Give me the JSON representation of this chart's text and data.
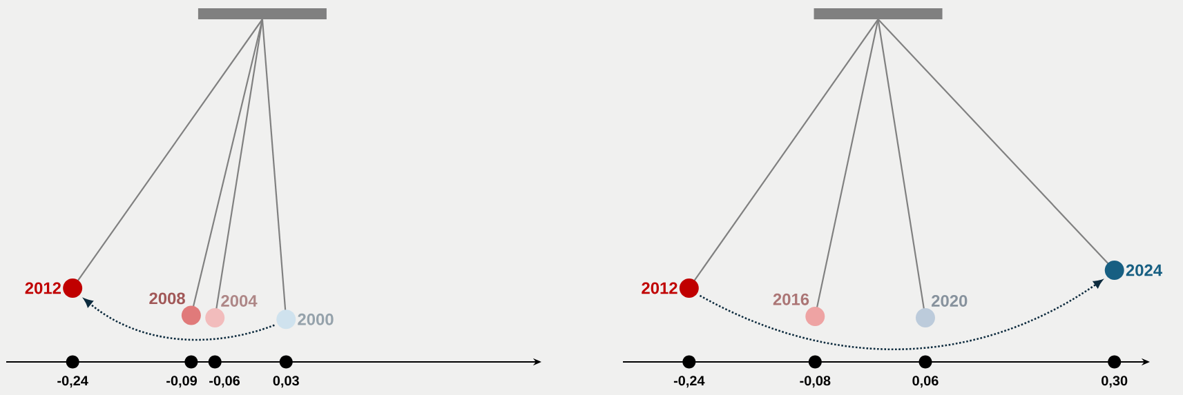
{
  "chart_data": [
    {
      "type": "other",
      "categories": [
        "2012",
        "2008",
        "2004",
        "2000"
      ],
      "values": [
        -0.24,
        -0.09,
        -0.06,
        0.03
      ],
      "value_labels": [
        "-0,24",
        "-0,09",
        "-0,06",
        "0,03"
      ],
      "colors": [
        "#c00000",
        "#e07a7a",
        "#f2bcbc",
        "#cfe2ee"
      ]
    },
    {
      "type": "other",
      "categories": [
        "2012",
        "2016",
        "2020",
        "2024"
      ],
      "values": [
        -0.24,
        -0.08,
        0.06,
        0.3
      ],
      "value_labels": [
        "-0,24",
        "-0,08",
        "0,06",
        "0,30"
      ],
      "colors": [
        "#c00000",
        "#eea3a3",
        "#bccbdb",
        "#175f82"
      ]
    }
  ]
}
